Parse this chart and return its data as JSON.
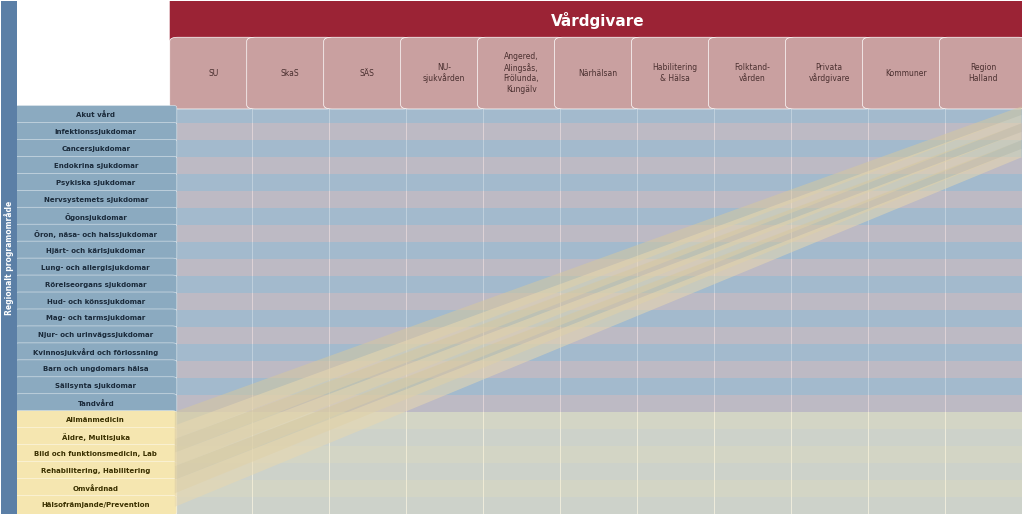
{
  "title": "Vårdgivare",
  "left_label": "Regionalt programområde",
  "col_headers": [
    "SU",
    "SkaS",
    "SÄS",
    "NU-\nsjukvården",
    "Angered,\nAlingsås,\nFrölunda,\nKungälv",
    "Närhälsan",
    "Habilitering\n& Hälsa",
    "Folktand-\nvården",
    "Privata\nvårdgivare",
    "Kommuner",
    "Region\nHalland"
  ],
  "blue_rows": [
    "Akut vård",
    "Infektionssjukdomar",
    "Cancersjukdomar",
    "Endokrina sjukdomar",
    "Psykiska sjukdomar",
    "Nervsystemets sjukdomar",
    "Ögonsjukdomar",
    "Öron, näsa- och halssjukdomar",
    "Hjärt- och kärlsjukdomar",
    "Lung- och allergisjukdomar",
    "Rörelseorgans sjukdomar",
    "Hud- och könssjukdomar",
    "Mag- och tarmsjukdomar",
    "Njur- och urinvägssjukdomar",
    "Kvinnosjukvård och förlossning",
    "Barn och ungdomars hälsa",
    "Sällsynta sjukdomar",
    "Tandvård"
  ],
  "yellow_rows": [
    "Allmänmedicin",
    "Äldre, Multisjuka",
    "Bild och funktionsmedicin, Lab",
    "Rehabilitering, Habilitering",
    "Omvårdnad",
    "Hälsofrämjande/Prevention"
  ],
  "colors": {
    "header_bg": "#9B2335",
    "header_text": "#FFFFFF",
    "col_header_bg": "#C9A0A0",
    "col_header_text": "#4A3030",
    "blue_row_bg": "#8BAAC0",
    "blue_row_text": "#1A2A3A",
    "pink_row_bg": "#C9A0A0",
    "yellow_row_bg": "#F5E6B0",
    "yellow_row_text": "#3A3000",
    "left_sidebar_bg": "#5B7FA6",
    "left_sidebar_text": "#FFFFFF",
    "grid_bg": "#B8C8D8",
    "grid_col_alt": "#C9A0A0",
    "diagonal_band1": "#D4C8A0",
    "diagonal_band2": "#E8D8B0",
    "fig_bg": "#FFFFFF"
  }
}
